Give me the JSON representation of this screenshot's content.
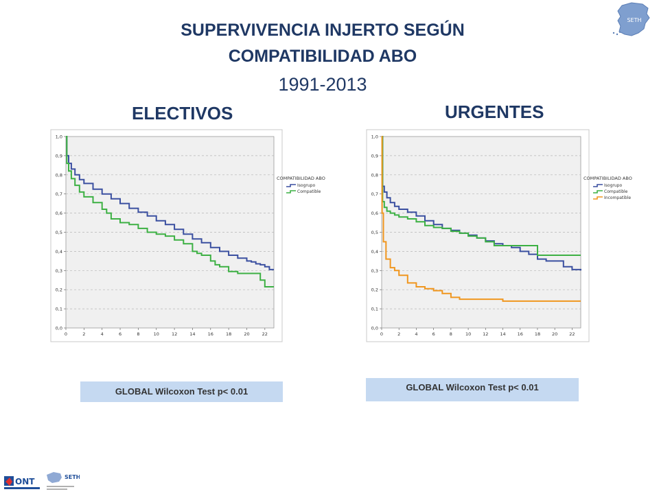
{
  "header": {
    "title_line1": "SUPERVIVENCIA INJERTO SEGÚN",
    "title_line2": "COMPATIBILIDAD ABO",
    "period": "1991-2013"
  },
  "logos": {
    "map_label": "SETH",
    "ont_label": "ONT",
    "seth_label": "SETH"
  },
  "colors": {
    "title": "#1f3864",
    "isogrupo": "#3a4fa0",
    "compatible": "#3cb043",
    "incompatible": "#f0961e",
    "plot_bg": "#f0f0f0",
    "test_box": "#c5d9f1"
  },
  "chart_data": [
    {
      "type": "line",
      "title": "ELECTIVOS",
      "legend_title": "COMPATIBILIDAD ABO",
      "legend_position": "right",
      "grid": true,
      "xlim": [
        0,
        23
      ],
      "ylim": [
        0,
        1
      ],
      "x_ticks": [
        "0",
        "2",
        "4",
        "6",
        "8",
        "10",
        "12",
        "14",
        "16",
        "18",
        "20",
        "22"
      ],
      "y_ticks": [
        "0,0",
        "0,1",
        "0,2",
        "0,3",
        "0,4",
        "0,5",
        "0,6",
        "0,7",
        "0,8",
        "0,9",
        "1,0"
      ],
      "series": [
        {
          "name": "Isogrupo",
          "color": "#3a4fa0",
          "x": [
            0,
            0.1,
            0.3,
            0.6,
            1,
            1.5,
            2,
            3,
            4,
            5,
            6,
            7,
            8,
            9,
            10,
            11,
            12,
            13,
            14,
            15,
            16,
            17,
            18,
            19,
            20,
            20.5,
            21,
            21.5,
            22,
            22.5,
            23
          ],
          "y": [
            1.0,
            0.9,
            0.86,
            0.83,
            0.8,
            0.775,
            0.755,
            0.725,
            0.7,
            0.675,
            0.65,
            0.625,
            0.605,
            0.585,
            0.56,
            0.54,
            0.515,
            0.49,
            0.465,
            0.445,
            0.42,
            0.4,
            0.38,
            0.365,
            0.35,
            0.345,
            0.335,
            0.33,
            0.32,
            0.305,
            0.305
          ]
        },
        {
          "name": "Compatible",
          "color": "#3cb043",
          "x": [
            0,
            0.1,
            0.3,
            0.6,
            1,
            1.5,
            2,
            3,
            4,
            4.5,
            5,
            6,
            7,
            8,
            9,
            10,
            11,
            12,
            13,
            14,
            14.5,
            15,
            16,
            16.5,
            17,
            18,
            19,
            20,
            21,
            21.5,
            22,
            23
          ],
          "y": [
            1.0,
            0.86,
            0.82,
            0.78,
            0.745,
            0.71,
            0.685,
            0.655,
            0.62,
            0.6,
            0.57,
            0.55,
            0.54,
            0.52,
            0.5,
            0.49,
            0.48,
            0.46,
            0.44,
            0.4,
            0.39,
            0.38,
            0.35,
            0.33,
            0.32,
            0.295,
            0.285,
            0.285,
            0.285,
            0.25,
            0.215,
            0.215
          ]
        }
      ],
      "test": "GLOBAL Wilcoxon Test  p< 0.01"
    },
    {
      "type": "line",
      "title": "URGENTES",
      "legend_title": "COMPATIBILIDAD ABO",
      "legend_position": "right",
      "grid": true,
      "xlim": [
        0,
        23
      ],
      "ylim": [
        0,
        1
      ],
      "x_ticks": [
        "0",
        "2",
        "4",
        "6",
        "8",
        "10",
        "12",
        "14",
        "16",
        "18",
        "20",
        "22"
      ],
      "y_ticks": [
        "0,0",
        "0,1",
        "0,2",
        "0,3",
        "0,4",
        "0,5",
        "0,6",
        "0,7",
        "0,8",
        "0,9",
        "1,0"
      ],
      "series": [
        {
          "name": "Isogrupo",
          "color": "#3a4fa0",
          "x": [
            0,
            0.1,
            0.3,
            0.6,
            1,
            1.5,
            2,
            3,
            4,
            5,
            6,
            7,
            8,
            9,
            10,
            11,
            12,
            13,
            14,
            15,
            16,
            17,
            18,
            19,
            20,
            21,
            22,
            23
          ],
          "y": [
            1.0,
            0.74,
            0.71,
            0.68,
            0.655,
            0.635,
            0.62,
            0.605,
            0.585,
            0.56,
            0.54,
            0.52,
            0.51,
            0.495,
            0.485,
            0.47,
            0.455,
            0.44,
            0.43,
            0.42,
            0.4,
            0.385,
            0.36,
            0.35,
            0.35,
            0.32,
            0.305,
            0.3
          ]
        },
        {
          "name": "Compatible",
          "color": "#3cb043",
          "x": [
            0,
            0.1,
            0.3,
            0.6,
            1,
            1.5,
            2,
            3,
            4,
            5,
            6,
            7,
            8,
            9,
            10,
            11,
            12,
            13,
            14,
            15,
            16,
            17,
            18,
            19,
            20,
            21,
            22,
            23
          ],
          "y": [
            1.0,
            0.66,
            0.63,
            0.61,
            0.6,
            0.59,
            0.58,
            0.57,
            0.555,
            0.535,
            0.525,
            0.52,
            0.505,
            0.495,
            0.48,
            0.47,
            0.45,
            0.43,
            0.43,
            0.43,
            0.43,
            0.43,
            0.38,
            0.38,
            0.38,
            0.38,
            0.38,
            0.38
          ]
        },
        {
          "name": "Incompatible",
          "color": "#f0961e",
          "x": [
            0,
            0.05,
            0.2,
            0.5,
            1,
            1.5,
            2,
            3,
            4,
            5,
            6,
            7,
            8,
            9,
            10,
            12,
            14,
            16,
            18,
            20,
            22,
            23
          ],
          "y": [
            1.0,
            0.6,
            0.45,
            0.36,
            0.315,
            0.3,
            0.275,
            0.235,
            0.215,
            0.205,
            0.195,
            0.18,
            0.16,
            0.15,
            0.15,
            0.15,
            0.14,
            0.14,
            0.14,
            0.14,
            0.14,
            0.14
          ]
        }
      ],
      "test": "GLOBAL Wilcoxon Test  p< 0.01"
    }
  ]
}
